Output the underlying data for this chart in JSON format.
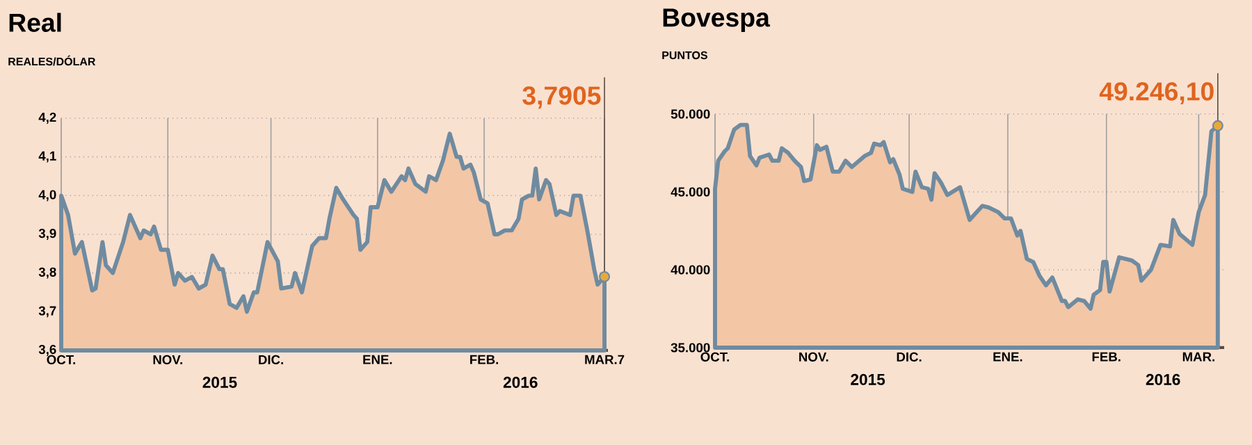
{
  "chart_data": [
    {
      "type": "area",
      "title": "Real",
      "subtitle": "REALES/DÓLAR",
      "color": "#6f8ba0",
      "grid": true,
      "x": [
        "2015-10-01",
        "2015-10-03",
        "2015-10-05",
        "2015-10-07",
        "2015-10-10",
        "2015-10-11",
        "2015-10-13",
        "2015-10-14",
        "2015-10-16",
        "2015-10-19",
        "2015-10-21",
        "2015-10-24",
        "2015-10-25",
        "2015-10-27",
        "2015-10-28",
        "2015-10-30",
        "2015-11-01",
        "2015-11-03",
        "2015-11-04",
        "2015-11-06",
        "2015-11-08",
        "2015-11-10",
        "2015-11-12",
        "2015-11-14",
        "2015-11-16",
        "2015-11-17",
        "2015-11-19",
        "2015-11-21",
        "2015-11-23",
        "2015-11-24",
        "2015-11-26",
        "2015-11-27",
        "2015-11-30",
        "2015-12-03",
        "2015-12-04",
        "2015-12-07",
        "2015-12-08",
        "2015-12-10",
        "2015-12-13",
        "2015-12-15",
        "2015-12-17",
        "2015-12-18",
        "2015-12-20",
        "2015-12-22",
        "2015-12-25",
        "2015-12-26",
        "2015-12-27",
        "2015-12-29",
        "2015-12-30",
        "2016-01-01",
        "2016-01-03",
        "2016-01-05",
        "2016-01-08",
        "2016-01-09",
        "2016-01-10",
        "2016-01-12",
        "2016-01-15",
        "2016-01-16",
        "2016-01-18",
        "2016-01-20",
        "2016-01-22",
        "2016-01-24",
        "2016-01-25",
        "2016-01-26",
        "2016-01-28",
        "2016-01-29",
        "2016-01-31",
        "2016-02-02",
        "2016-02-04",
        "2016-02-05",
        "2016-02-07",
        "2016-02-09",
        "2016-02-11",
        "2016-02-12",
        "2016-02-14",
        "2016-02-15",
        "2016-02-16",
        "2016-02-17",
        "2016-02-19",
        "2016-02-20",
        "2016-02-22",
        "2016-02-23",
        "2016-02-26",
        "2016-02-27",
        "2016-02-29",
        "2016-03-02",
        "2016-03-04",
        "2016-03-05",
        "2016-03-07"
      ],
      "values": [
        4.0,
        3.95,
        3.85,
        3.88,
        3.755,
        3.76,
        3.88,
        3.82,
        3.8,
        3.88,
        3.95,
        3.89,
        3.91,
        3.9,
        3.92,
        3.86,
        3.86,
        3.77,
        3.8,
        3.78,
        3.79,
        3.76,
        3.77,
        3.845,
        3.81,
        3.81,
        3.72,
        3.71,
        3.74,
        3.7,
        3.75,
        3.75,
        3.88,
        3.83,
        3.76,
        3.765,
        3.8,
        3.75,
        3.87,
        3.89,
        3.89,
        3.94,
        4.02,
        3.99,
        3.95,
        3.94,
        3.86,
        3.88,
        3.97,
        3.97,
        4.04,
        4.01,
        4.05,
        4.04,
        4.07,
        4.03,
        4.01,
        4.05,
        4.04,
        4.09,
        4.16,
        4.1,
        4.1,
        4.07,
        4.08,
        4.06,
        3.99,
        3.98,
        3.9,
        3.9,
        3.91,
        3.91,
        3.94,
        3.99,
        4.0,
        4.0,
        4.07,
        3.99,
        4.04,
        4.03,
        3.95,
        3.96,
        3.95,
        4.0,
        4.0,
        3.91,
        3.81,
        3.77,
        3.7905
      ],
      "xlim": [
        "2015-10-01",
        "2016-03-08"
      ],
      "ylim": [
        3.6,
        4.2
      ],
      "xticks": [
        {
          "value": "2015-10-01",
          "label": "OCT."
        },
        {
          "value": "2015-11-01",
          "label": "NOV."
        },
        {
          "value": "2015-12-01",
          "label": "DIC."
        },
        {
          "value": "2016-01-01",
          "label": "ENE."
        },
        {
          "value": "2016-02-01",
          "label": "FEB."
        },
        {
          "value": "2016-03-07",
          "label": "MAR.7"
        }
      ],
      "yticks": [
        {
          "value": 3.6,
          "label": "3,6"
        },
        {
          "value": 3.7,
          "label": "3,7"
        },
        {
          "value": 3.8,
          "label": "3,8"
        },
        {
          "value": 3.9,
          "label": "3,9"
        },
        {
          "value": 4.0,
          "label": "4,0"
        },
        {
          "value": 4.1,
          "label": "4,1"
        },
        {
          "value": 4.2,
          "label": "4,2"
        }
      ],
      "annotations": [
        {
          "text": "3,7905"
        },
        "2015",
        "2016"
      ]
    },
    {
      "type": "area",
      "title": "Bovespa",
      "subtitle": "PUNTOS",
      "color": "#6f8ba0",
      "grid": true,
      "x": [
        "2015-10-01",
        "2015-10-02",
        "2015-10-04",
        "2015-10-05",
        "2015-10-07",
        "2015-10-09",
        "2015-10-11",
        "2015-10-12",
        "2015-10-14",
        "2015-10-15",
        "2015-10-18",
        "2015-10-19",
        "2015-10-21",
        "2015-10-22",
        "2015-10-24",
        "2015-10-26",
        "2015-10-28",
        "2015-10-29",
        "2015-10-31",
        "2015-11-02",
        "2015-11-03",
        "2015-11-05",
        "2015-11-07",
        "2015-11-09",
        "2015-11-11",
        "2015-11-13",
        "2015-11-17",
        "2015-11-19",
        "2015-11-20",
        "2015-11-22",
        "2015-11-23",
        "2015-11-25",
        "2015-11-26",
        "2015-11-28",
        "2015-11-29",
        "2015-12-02",
        "2015-12-03",
        "2015-12-05",
        "2015-12-07",
        "2015-12-08",
        "2015-12-09",
        "2015-12-11",
        "2015-12-13",
        "2015-12-17",
        "2015-12-20",
        "2015-12-24",
        "2015-12-26",
        "2015-12-29",
        "2015-12-31",
        "2016-01-02",
        "2016-01-04",
        "2016-01-05",
        "2016-01-07",
        "2016-01-09",
        "2016-01-11",
        "2016-01-13",
        "2016-01-15",
        "2016-01-18",
        "2016-01-19",
        "2016-01-20",
        "2016-01-23",
        "2016-01-25",
        "2016-01-27",
        "2016-01-28",
        "2016-01-30",
        "2016-01-31",
        "2016-02-01",
        "2016-02-02",
        "2016-02-05",
        "2016-02-07",
        "2016-02-09",
        "2016-02-11",
        "2016-02-12",
        "2016-02-15",
        "2016-02-18",
        "2016-02-21",
        "2016-02-22",
        "2016-02-24",
        "2016-02-28",
        "2016-03-01",
        "2016-03-03",
        "2016-03-05",
        "2016-03-07"
      ],
      "values": [
        45200,
        47000,
        47600,
        47800,
        49000,
        49300,
        49300,
        47300,
        46700,
        47200,
        47400,
        47000,
        47000,
        47800,
        47500,
        47000,
        46600,
        45700,
        45800,
        48000,
        47700,
        47900,
        46300,
        46300,
        47000,
        46600,
        47300,
        47500,
        48100,
        48000,
        48200,
        46900,
        47100,
        46100,
        45200,
        45000,
        46300,
        45300,
        45200,
        44500,
        46200,
        45600,
        44800,
        45300,
        43200,
        44100,
        44000,
        43700,
        43300,
        43300,
        42200,
        42500,
        40700,
        40500,
        39600,
        39000,
        39500,
        38000,
        38000,
        37600,
        38100,
        38000,
        37500,
        38400,
        38700,
        40500,
        40500,
        38600,
        40800,
        40700,
        40600,
        40300,
        39300,
        40000,
        41600,
        41500,
        43200,
        42300,
        41600,
        43700,
        44800,
        48900,
        49246.1
      ],
      "xlim": [
        "2015-10-01",
        "2016-03-09"
      ],
      "ylim": [
        35000,
        50000
      ],
      "xticks": [
        {
          "value": "2015-10-01",
          "label": "OCT."
        },
        {
          "value": "2015-11-01",
          "label": "NOV."
        },
        {
          "value": "2015-12-01",
          "label": "DIC."
        },
        {
          "value": "2016-01-01",
          "label": "ENE."
        },
        {
          "value": "2016-02-01",
          "label": "FEB."
        },
        {
          "value": "2016-03-01",
          "label": "MAR."
        }
      ],
      "yticks": [
        {
          "value": 35000,
          "label": "35.000"
        },
        {
          "value": 40000,
          "label": "40.000"
        },
        {
          "value": 45000,
          "label": "45.000"
        },
        {
          "value": 50000,
          "label": "50.000"
        }
      ],
      "annotations": [
        {
          "text": "49.246,10",
          "x": "2016-03-07",
          "y": 49246.1
        },
        "2015",
        "2016"
      ]
    }
  ]
}
